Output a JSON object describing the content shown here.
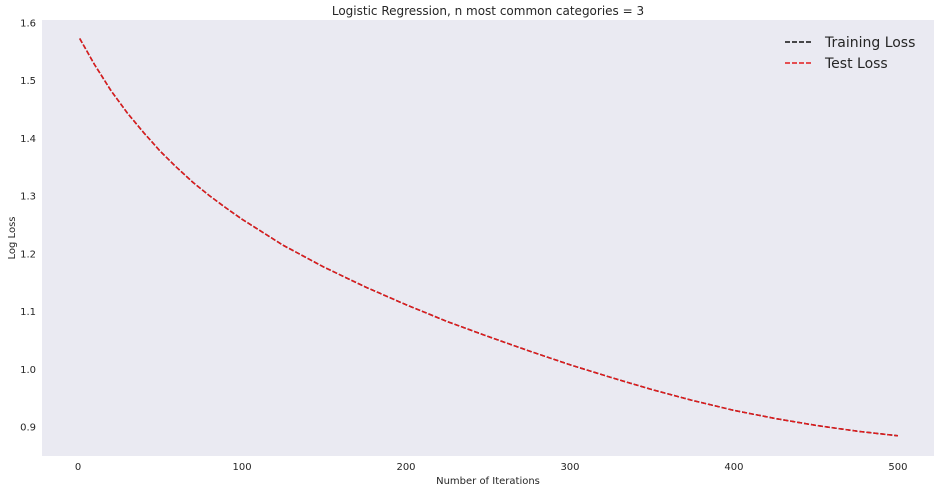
{
  "chart_data": {
    "type": "line",
    "title": "Logistic Regression, n most common categories = 3",
    "xlabel": "Number of Iterations",
    "ylabel": "Log Loss",
    "xlim": [
      -22,
      522
    ],
    "ylim": [
      0.85,
      1.605
    ],
    "xticks": [
      0,
      100,
      200,
      300,
      400,
      500
    ],
    "yticks": [
      0.9,
      1.0,
      1.1,
      1.2,
      1.3,
      1.4,
      1.5,
      1.6
    ],
    "grid": false,
    "legend_position": "top-right",
    "x": [
      1,
      10,
      20,
      30,
      40,
      50,
      60,
      70,
      80,
      90,
      100,
      125,
      150,
      175,
      200,
      225,
      250,
      275,
      300,
      325,
      350,
      375,
      400,
      425,
      450,
      475,
      500
    ],
    "series": [
      {
        "name": "Training Loss",
        "color": "#111111",
        "style": "dashed",
        "values": [
          1.573,
          1.528,
          1.483,
          1.444,
          1.41,
          1.378,
          1.35,
          1.324,
          1.301,
          1.28,
          1.26,
          1.215,
          1.177,
          1.143,
          1.112,
          1.083,
          1.057,
          1.032,
          1.008,
          0.986,
          0.965,
          0.946,
          0.929,
          0.915,
          0.903,
          0.893,
          0.885
        ]
      },
      {
        "name": "Test Loss",
        "color": "#e31a1c",
        "style": "dashed",
        "values": [
          1.573,
          1.528,
          1.483,
          1.444,
          1.41,
          1.378,
          1.35,
          1.324,
          1.301,
          1.28,
          1.26,
          1.215,
          1.177,
          1.143,
          1.112,
          1.083,
          1.057,
          1.032,
          1.008,
          0.986,
          0.965,
          0.946,
          0.929,
          0.915,
          0.903,
          0.893,
          0.885
        ]
      }
    ],
    "plot_background": "#eaeaf2"
  }
}
